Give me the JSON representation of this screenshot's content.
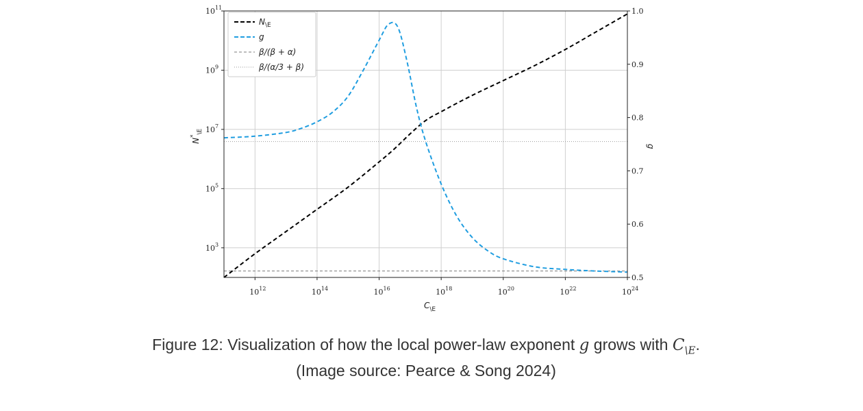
{
  "chart_data": {
    "type": "line",
    "x_scale": "log",
    "y_left_scale": "log",
    "xlim": [
      "1e11",
      "1e24"
    ],
    "ylim_left": [
      "1e2",
      "1e11"
    ],
    "ylim_right": [
      0.5,
      1.0
    ],
    "x_ticks": [
      {
        "base": "10",
        "exp": "12"
      },
      {
        "base": "10",
        "exp": "14"
      },
      {
        "base": "10",
        "exp": "16"
      },
      {
        "base": "10",
        "exp": "18"
      },
      {
        "base": "10",
        "exp": "20"
      },
      {
        "base": "10",
        "exp": "22"
      },
      {
        "base": "10",
        "exp": "24"
      }
    ],
    "y_left_ticks": [
      {
        "base": "10",
        "exp": "3"
      },
      {
        "base": "10",
        "exp": "5"
      },
      {
        "base": "10",
        "exp": "7"
      },
      {
        "base": "10",
        "exp": "9"
      },
      {
        "base": "10",
        "exp": "11"
      }
    ],
    "y_right_ticks": [
      "0.5",
      "0.6",
      "0.7",
      "0.8",
      "0.9",
      "1.0"
    ],
    "xlabel": "C\\E",
    "ylabel_left": "N*\\E",
    "ylabel_right": "g",
    "grid": true,
    "legend_placement": "top-left",
    "series": [
      {
        "name": "N\\E",
        "axis": "left",
        "color": "#000000",
        "style": "dashed",
        "x_log10": [
          11,
          12,
          13,
          14,
          15,
          16,
          16.5,
          17,
          17.5,
          18,
          19,
          20,
          21,
          22,
          23,
          24
        ],
        "y_log10": [
          2.0,
          2.8,
          3.55,
          4.3,
          5.05,
          5.9,
          6.35,
          6.85,
          7.3,
          7.6,
          8.15,
          8.65,
          9.15,
          9.7,
          10.3,
          10.9
        ]
      },
      {
        "name": "g",
        "axis": "right",
        "color": "#1f9de0",
        "style": "dashed",
        "x_log10": [
          11,
          12,
          13,
          13.5,
          14,
          14.5,
          15,
          15.5,
          16,
          16.3,
          16.6,
          16.9,
          17.2,
          17.5,
          18,
          18.5,
          19,
          19.5,
          20,
          21,
          22,
          23,
          24
        ],
        "y_values": [
          0.762,
          0.765,
          0.772,
          0.78,
          0.792,
          0.81,
          0.84,
          0.89,
          0.945,
          0.975,
          0.97,
          0.905,
          0.82,
          0.755,
          0.675,
          0.615,
          0.575,
          0.55,
          0.535,
          0.52,
          0.515,
          0.512,
          0.51
        ]
      },
      {
        "name": "β/(β + α)",
        "axis": "right",
        "color": "#7a7a7a",
        "style": "dashed",
        "constant": 0.512
      },
      {
        "name": "β/(α/3 + β)",
        "axis": "right",
        "color": "#9a9a9a",
        "style": "dotted",
        "constant": 0.755
      }
    ]
  },
  "legend": {
    "entries": [
      {
        "label": "N",
        "sub": "\\E"
      },
      {
        "label": "g",
        "sub": ""
      },
      {
        "label": "β/(β + α)",
        "sub": ""
      },
      {
        "label": "β/(α/3 + β)",
        "sub": ""
      }
    ]
  },
  "caption": {
    "line1_text": "Figure 12: Visualization of how the local power-law exponent ",
    "line1_var": "g",
    "line1_mid": " grows with ",
    "line1_C": "C",
    "line1_sub": "\\E",
    "line1_end": ".",
    "line2": "(Image source: Pearce & Song 2024)"
  }
}
